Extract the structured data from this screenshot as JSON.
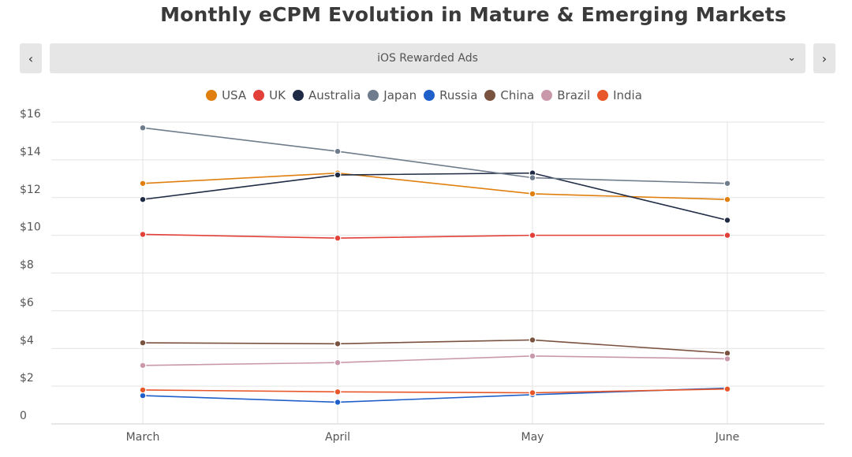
{
  "chart_data": {
    "type": "line",
    "title": "Monthly eCPM Evolution in Mature & Emerging Markets",
    "xlabel": "",
    "ylabel": "",
    "categories": [
      "March",
      "April",
      "May",
      "June"
    ],
    "y_ticks": [
      "0",
      "$2",
      "$4",
      "$6",
      "$8",
      "$10",
      "$12",
      "$14",
      "$16"
    ],
    "ylim": [
      0,
      16
    ],
    "grid": true,
    "legend_position": "top-center",
    "series": [
      {
        "name": "USA",
        "color": "#e07f0e",
        "values": [
          12.75,
          13.3,
          12.2,
          11.9
        ]
      },
      {
        "name": "UK",
        "color": "#e2413a",
        "values": [
          10.05,
          9.85,
          10.0,
          10.0
        ]
      },
      {
        "name": "Australia",
        "color": "#1f2a44",
        "values": [
          11.9,
          13.2,
          13.3,
          10.8
        ]
      },
      {
        "name": "Japan",
        "color": "#6f7c8c",
        "values": [
          15.7,
          14.45,
          13.05,
          12.75
        ]
      },
      {
        "name": "Russia",
        "color": "#1e5fc9",
        "values": [
          1.5,
          1.15,
          1.55,
          1.9
        ]
      },
      {
        "name": "China",
        "color": "#7a5240",
        "values": [
          4.3,
          4.25,
          4.45,
          3.75
        ]
      },
      {
        "name": "Brazil",
        "color": "#c999ab",
        "values": [
          3.1,
          3.25,
          3.6,
          3.45
        ]
      },
      {
        "name": "India",
        "color": "#e8572a",
        "values": [
          1.8,
          1.7,
          1.65,
          1.85
        ]
      }
    ]
  },
  "selector": {
    "label": "iOS Rewarded Ads",
    "prev_icon": "‹",
    "next_icon": "›",
    "chevron_icon": "⌄"
  }
}
